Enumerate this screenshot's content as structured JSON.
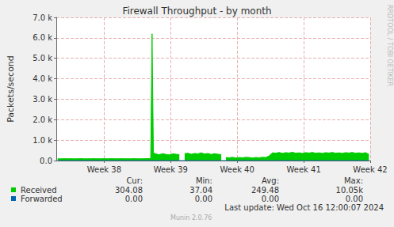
{
  "chart_data": {
    "type": "area",
    "title": "Firewall Throughput - by month",
    "y_label": "Packets/second",
    "x": [
      37.3,
      37.35,
      37.4,
      37.45,
      37.5,
      37.55,
      37.6,
      37.65,
      37.7,
      37.75,
      37.8,
      37.85,
      37.9,
      37.95,
      38.0,
      38.05,
      38.1,
      38.15,
      38.2,
      38.25,
      38.3,
      38.35,
      38.4,
      38.45,
      38.5,
      38.55,
      38.6,
      38.65,
      38.7,
      38.72,
      38.74,
      38.78,
      38.83,
      38.88,
      38.93,
      38.98,
      39.03,
      39.08,
      39.13,
      39.17,
      39.21,
      39.26,
      39.31,
      39.36,
      39.41,
      39.46,
      39.51,
      39.56,
      39.61,
      39.66,
      39.71,
      39.76,
      39.8,
      39.83,
      39.88,
      39.93,
      39.98,
      40.03,
      40.08,
      40.13,
      40.18,
      40.23,
      40.28,
      40.33,
      40.38,
      40.43,
      40.48,
      40.53,
      40.58,
      40.63,
      40.68,
      40.73,
      40.78,
      40.83,
      40.88,
      40.93,
      40.98,
      41.03,
      41.08,
      41.13,
      41.18,
      41.23,
      41.28,
      41.33,
      41.38,
      41.43,
      41.48,
      41.53,
      41.58,
      41.63,
      41.68,
      41.73,
      41.78,
      41.83,
      41.88,
      41.93,
      41.98
    ],
    "series": [
      {
        "name": "Received",
        "color": "#00cc00",
        "type": "area",
        "stats": [
          "304.08",
          "37.04",
          "249.48",
          "10.05k"
        ],
        "values": [
          90,
          85,
          95,
          88,
          92,
          86,
          90,
          94,
          87,
          91,
          89,
          93,
          86,
          90,
          92,
          88,
          95,
          90,
          87,
          93,
          89,
          91,
          86,
          94,
          90,
          88,
          92,
          95,
          100,
          6200,
          380,
          320,
          290,
          340,
          300,
          280,
          330,
          310,
          290,
          null,
          340,
          360,
          310,
          350,
          330,
          380,
          320,
          350,
          300,
          340,
          310,
          290,
          null,
          150,
          140,
          160,
          130,
          150,
          140,
          160,
          150,
          130,
          150,
          140,
          160,
          150,
          230,
          380,
          360,
          400,
          350,
          390,
          370,
          410,
          360,
          380,
          350,
          390,
          370,
          400,
          360,
          380,
          350,
          390,
          370,
          400,
          360,
          380,
          350,
          390,
          370,
          400,
          360,
          380,
          350,
          390,
          304
        ]
      },
      {
        "name": "Forwarded",
        "color": "#0066b3",
        "type": "line",
        "stats": [
          "0.00",
          "0.00",
          "0.00",
          "0.00"
        ],
        "values": [
          0,
          0,
          0,
          0,
          0,
          0,
          0,
          0,
          0,
          0,
          0,
          0,
          0,
          0,
          0,
          0,
          0,
          0,
          0,
          0,
          0,
          0,
          0,
          0,
          0,
          0,
          0,
          0,
          0,
          0,
          0,
          0,
          0,
          0,
          0,
          0,
          0,
          0,
          0,
          0,
          0,
          0,
          0,
          0,
          0,
          0,
          0,
          0,
          0,
          0,
          0,
          0,
          0,
          0,
          0,
          0,
          0,
          0,
          0,
          0,
          0,
          0,
          0,
          0,
          0,
          0,
          0,
          0,
          0,
          0,
          0,
          0,
          0,
          0,
          0,
          0,
          0,
          0,
          0,
          0,
          0,
          0,
          0,
          0,
          0,
          0,
          0,
          0,
          0,
          0,
          0,
          0,
          0,
          0,
          0,
          0,
          0
        ]
      }
    ],
    "stat_headers": [
      "Cur:",
      "Min:",
      "Avg:",
      "Max:"
    ],
    "annotations": [
      "Last update: Wed Oct 16 12:00:07 2024",
      "Munin 2.0.76",
      "RRDTOOL / TOBI OETIKER"
    ],
    "xlim": [
      37.28,
      42
    ],
    "xticks": [
      {
        "value": 38,
        "label": "Week 38"
      },
      {
        "value": 39,
        "label": "Week 39"
      },
      {
        "value": 40,
        "label": "Week 40"
      },
      {
        "value": 41,
        "label": "Week 41"
      },
      {
        "value": 42,
        "label": "Week 42"
      }
    ],
    "ylim": [
      0,
      7000
    ],
    "yticks": [
      {
        "value": 0,
        "label": "0.0"
      },
      {
        "value": 1000,
        "label": "1.0 k"
      },
      {
        "value": 2000,
        "label": "2.0 k"
      },
      {
        "value": 3000,
        "label": "3.0 k"
      },
      {
        "value": 4000,
        "label": "4.0 k"
      },
      {
        "value": 5000,
        "label": "5.0 k"
      },
      {
        "value": 6000,
        "label": "6.0 k"
      },
      {
        "value": 7000,
        "label": "7.0 k"
      }
    ],
    "grid": true
  }
}
